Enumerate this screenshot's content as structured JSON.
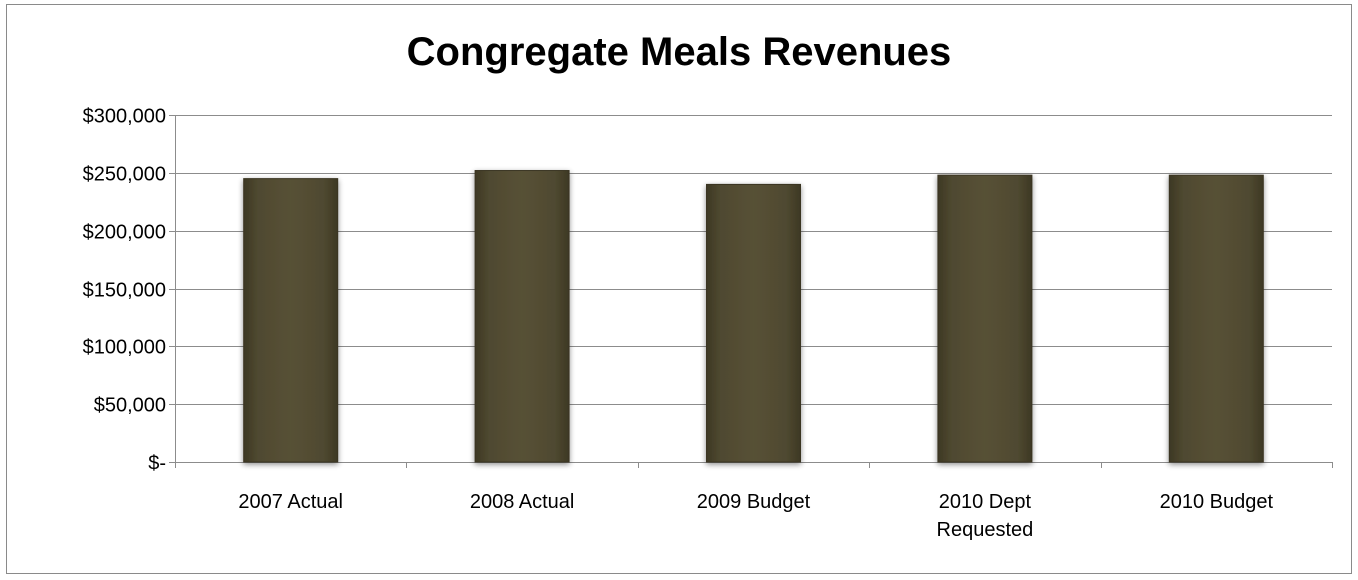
{
  "chart_data": {
    "type": "bar",
    "title": "Congregate Meals Revenues",
    "categories": [
      [
        "2007 Actual"
      ],
      [
        "2008 Actual"
      ],
      [
        "2009 Budget"
      ],
      [
        "2010 Dept",
        "Requested"
      ],
      [
        "2010 Budget"
      ]
    ],
    "values": [
      245000,
      252000,
      240000,
      248000,
      248000
    ],
    "ylim": [
      0,
      300000
    ],
    "yticks": [
      0,
      50000,
      100000,
      150000,
      200000,
      250000,
      300000
    ],
    "ytick_labels": [
      "$-",
      "$50,000",
      "$100,000",
      "$150,000",
      "$200,000",
      "$250,000",
      "$300,000"
    ],
    "grid": true,
    "legend": "none",
    "bar_color": "#504a31",
    "bar_edge_color": "#3a3522",
    "grid_color": "#8c8c8c"
  }
}
